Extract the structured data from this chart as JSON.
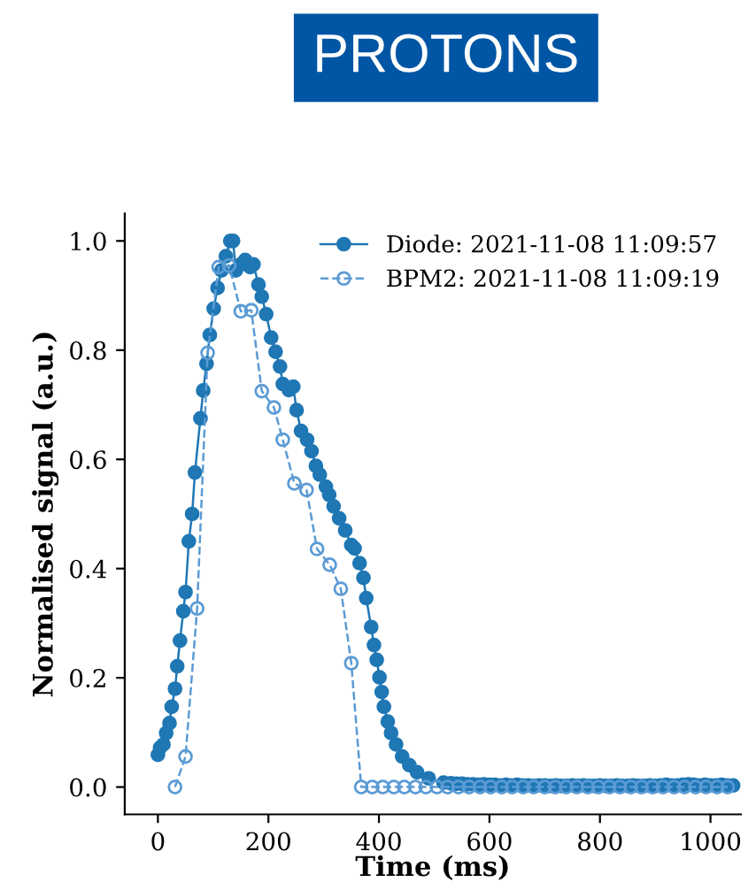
{
  "chart_data": {
    "type": "line",
    "title": "PROTONS",
    "xlabel": "Time (ms)",
    "ylabel": "Normalised signal (a.u.)",
    "xlim": [
      -60,
      1055
    ],
    "ylim": [
      -0.05,
      1.05
    ],
    "xticks": [
      0,
      200,
      400,
      600,
      800,
      1000
    ],
    "yticks": [
      {
        "value": 0,
        "label": "0.0"
      },
      0.2,
      0.4,
      0.6,
      0.8,
      {
        "value": 1,
        "label": "1.0"
      }
    ],
    "legend": "top right",
    "grid": false,
    "series": [
      {
        "name": "Diode: 2021-11-08 11:09:57",
        "color": "#1f77b4",
        "marker": "circle",
        "line_style": "solid",
        "x": [
          0,
          4,
          10,
          15,
          21,
          25,
          31,
          35,
          40,
          46,
          50,
          56,
          62,
          67,
          77,
          82,
          88,
          94,
          101,
          108,
          115,
          123,
          131,
          136,
          141,
          150,
          158,
          167,
          173,
          182,
          188,
          196,
          205,
          213,
          221,
          226,
          237,
          245,
          251,
          259,
          270,
          278,
          286,
          293,
          304,
          310,
          318,
          328,
          339,
          350,
          356,
          365,
          372,
          377,
          386,
          391,
          396,
          401,
          405,
          409,
          416,
          422,
          431,
          442,
          455,
          469,
          490,
          517,
          530,
          540,
          550,
          560,
          570,
          580,
          590,
          600,
          610,
          620,
          630,
          640,
          650,
          660,
          670,
          680,
          690,
          700,
          710,
          720,
          730,
          740,
          750,
          760,
          770,
          780,
          790,
          800,
          810,
          820,
          830,
          840,
          850,
          860,
          870,
          880,
          890,
          900,
          910,
          920,
          930,
          940,
          950,
          960,
          970,
          980,
          990,
          1000,
          1010,
          1020,
          1030,
          1041
        ],
        "values": [
          0.059,
          0.072,
          0.078,
          0.099,
          0.117,
          0.147,
          0.18,
          0.221,
          0.268,
          0.322,
          0.357,
          0.45,
          0.5,
          0.576,
          0.675,
          0.726,
          0.775,
          0.828,
          0.876,
          0.914,
          0.946,
          0.972,
          1.0,
          1.0,
          0.946,
          0.957,
          0.965,
          0.952,
          0.957,
          0.92,
          0.898,
          0.866,
          0.823,
          0.797,
          0.77,
          0.738,
          0.727,
          0.733,
          0.69,
          0.652,
          0.636,
          0.615,
          0.588,
          0.572,
          0.55,
          0.535,
          0.514,
          0.492,
          0.47,
          0.443,
          0.437,
          0.41,
          0.383,
          0.346,
          0.293,
          0.26,
          0.233,
          0.201,
          0.174,
          0.147,
          0.12,
          0.099,
          0.078,
          0.056,
          0.04,
          0.027,
          0.016,
          0.008,
          0.007,
          0.006,
          0.006,
          0.005,
          0.005,
          0.004,
          0.005,
          0.004,
          0.004,
          0.003,
          0.004,
          0.003,
          0.004,
          0.003,
          0.003,
          0.002,
          0.003,
          0.003,
          0.002,
          0.003,
          0.002,
          0.002,
          0.003,
          0.002,
          0.003,
          0.002,
          0.002,
          0.003,
          0.002,
          0.002,
          0.003,
          0.002,
          0.002,
          0.003,
          0.002,
          0.002,
          0.003,
          0.002,
          0.003,
          0.004,
          0.003,
          0.003,
          0.004,
          0.005,
          0.004,
          0.003,
          0.004,
          0.003,
          0.003,
          0.004,
          0.003,
          0.003
        ]
      },
      {
        "name": "BPM2: 2021-11-08 11:09:19",
        "color": "#5b9bd5",
        "marker": "circle",
        "line_style": "dashed",
        "x": [
          31,
          50,
          71,
          90,
          110,
          129,
          150,
          169,
          188,
          210,
          226,
          247,
          269,
          288,
          311,
          331,
          350,
          368,
          388,
          407,
          427,
          446,
          466,
          485,
          505,
          524,
          544,
          563,
          583,
          602,
          622,
          641,
          661,
          680,
          700,
          719,
          739,
          758,
          778,
          797,
          817,
          836,
          856,
          875,
          895,
          914,
          934,
          953,
          973,
          992,
          1012,
          1031
        ],
        "values": [
          0,
          0.056,
          0.327,
          0.795,
          0.952,
          0.955,
          0.871,
          0.873,
          0.725,
          0.695,
          0.636,
          0.556,
          0.544,
          0.436,
          0.407,
          0.363,
          0.227,
          0,
          0,
          0,
          0,
          0,
          0,
          0,
          0,
          0,
          0,
          0,
          0,
          0,
          0,
          0,
          0,
          0,
          0,
          0,
          0,
          0,
          0,
          0,
          0,
          0,
          0,
          0,
          0,
          0,
          0,
          0,
          0,
          0,
          0,
          0
        ]
      }
    ]
  }
}
